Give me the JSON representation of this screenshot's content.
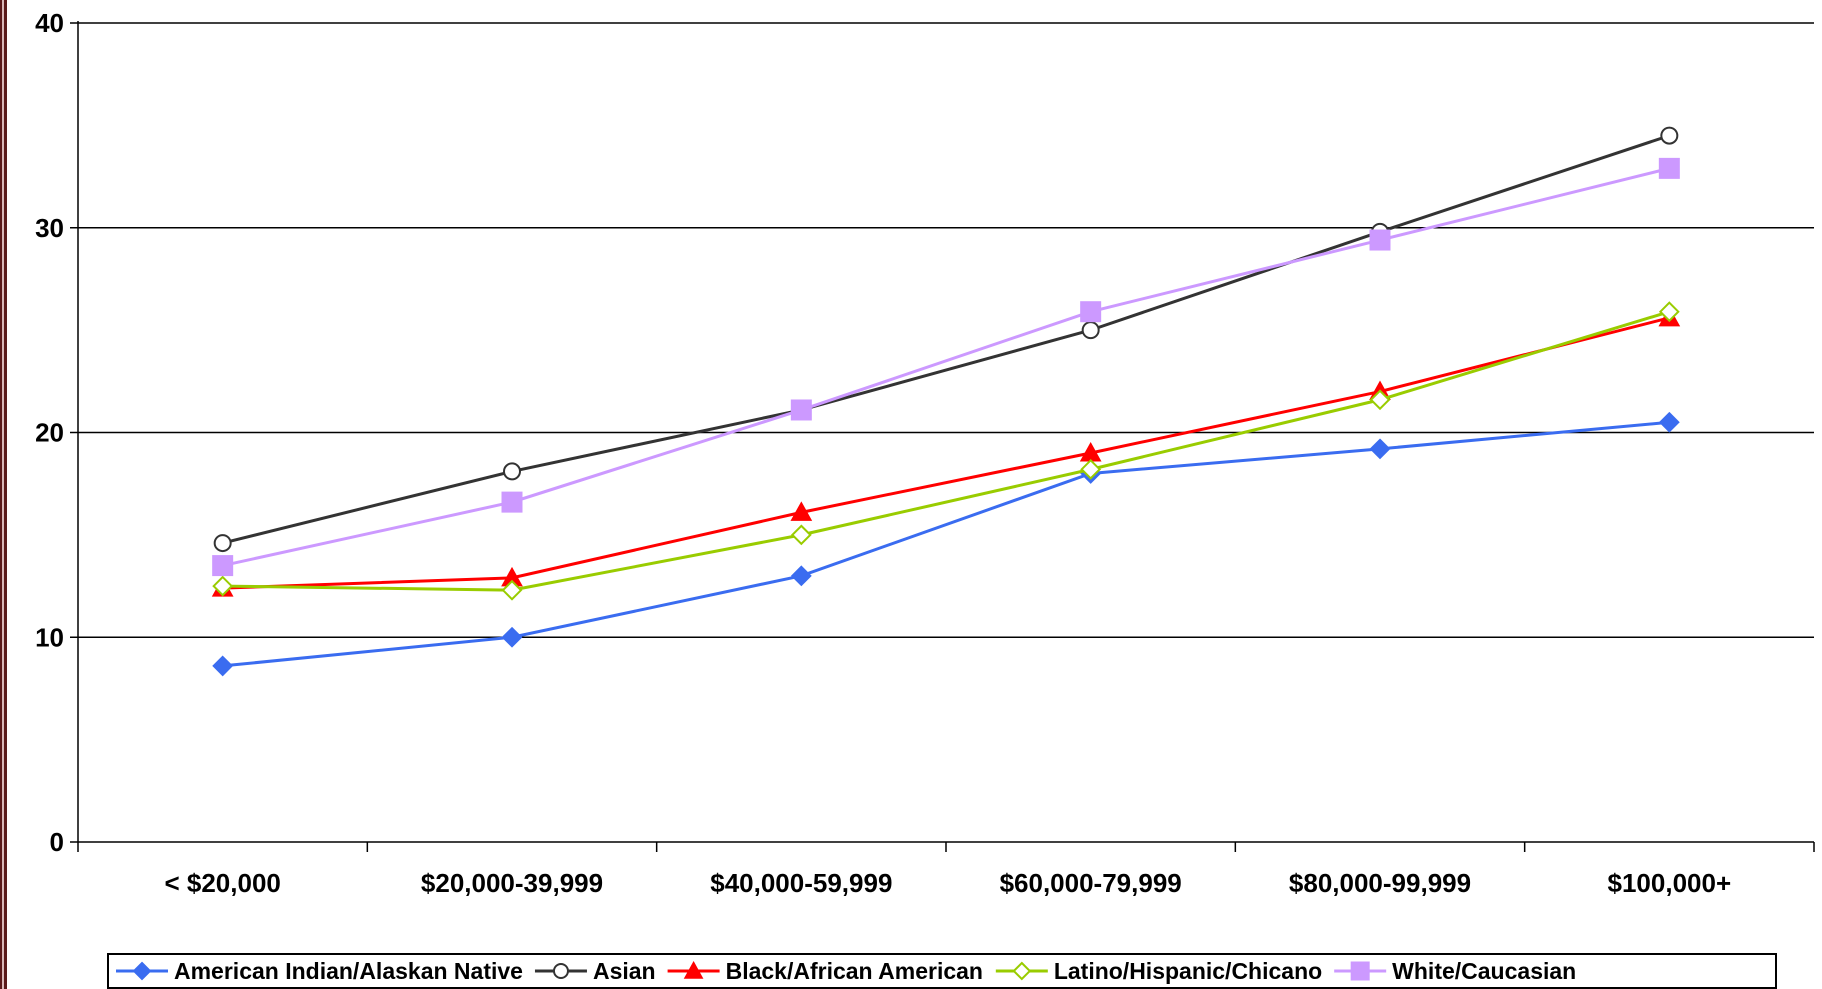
{
  "chart_data": {
    "type": "line",
    "title": "",
    "xlabel": "",
    "ylabel": "",
    "categories": [
      "< $20,000",
      "$20,000-39,999",
      "$40,000-59,999",
      "$60,000-79,999",
      "$80,000-99,999",
      "$100,000+"
    ],
    "ylim": [
      0,
      40
    ],
    "yticks": [
      0,
      10,
      20,
      30,
      40
    ],
    "grid": "horizontal",
    "legend_position": "bottom",
    "series": [
      {
        "name": "American Indian/Alaskan Native",
        "color": "#3a6cf0",
        "marker": "diamond-filled",
        "values": [
          8.6,
          10.0,
          13.0,
          18.0,
          19.2,
          20.5
        ]
      },
      {
        "name": "Asian",
        "color": "#333333",
        "marker": "circle-open",
        "values": [
          14.6,
          18.1,
          21.1,
          25.0,
          29.8,
          34.5
        ]
      },
      {
        "name": "Black/African American",
        "color": "#ff0000",
        "marker": "triangle-filled",
        "values": [
          12.4,
          12.9,
          16.1,
          19.0,
          22.0,
          25.6
        ]
      },
      {
        "name": "Latino/Hispanic/Chicano",
        "color": "#99cc00",
        "marker": "diamond-open",
        "values": [
          12.5,
          12.3,
          15.0,
          18.2,
          21.6,
          25.9
        ]
      },
      {
        "name": "White/Caucasian",
        "color": "#cc99ff",
        "marker": "square-filled",
        "values": [
          13.5,
          16.6,
          21.1,
          25.9,
          29.4,
          32.9
        ]
      }
    ]
  }
}
